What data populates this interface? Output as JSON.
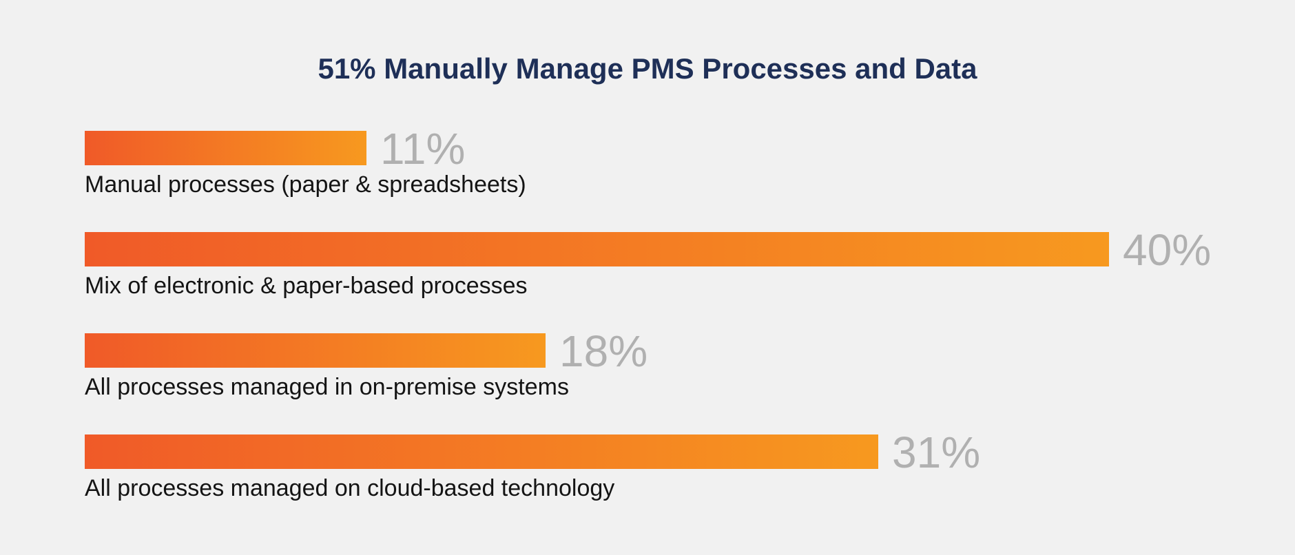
{
  "chart_data": {
    "type": "bar",
    "orientation": "horizontal",
    "title": "51% Manually Manage PMS Processes and Data",
    "categories": [
      "Manual processes (paper & spreadsheets)",
      "Mix of electronic & paper-based processes",
      "All processes managed in on-premise systems",
      "All processes managed on cloud-based technology"
    ],
    "values": [
      11,
      40,
      18,
      31
    ],
    "value_labels": [
      "11%",
      "40%",
      "18%",
      "31%"
    ],
    "unit": "%",
    "xlim": [
      0,
      40
    ],
    "grid": false,
    "legend": "none",
    "colors": {
      "bar_start": "#f05a28",
      "bar_end": "#f7991f",
      "value_text": "#b0b0b0",
      "title_text": "#1e2f57",
      "label_text": "#141414",
      "background": "#f1f1f1"
    }
  }
}
